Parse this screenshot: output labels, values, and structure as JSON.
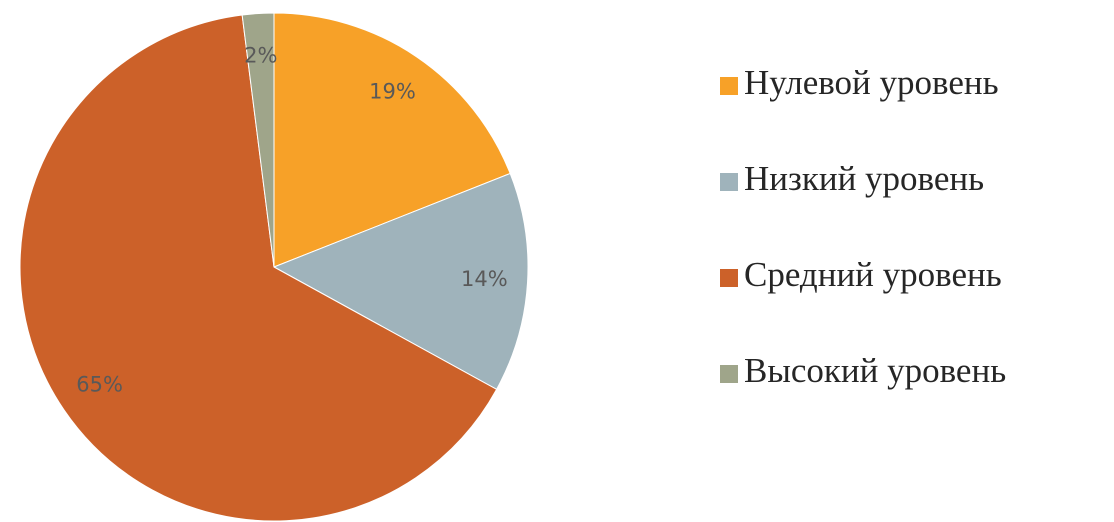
{
  "chart_data": {
    "type": "pie",
    "categories": [
      "Нулевой уровень",
      "Низкий уровень",
      "Средний уровень",
      "Высокий уровень"
    ],
    "values": [
      19,
      14,
      65,
      2
    ],
    "value_labels": [
      "19%",
      "14%",
      "65%",
      "2%"
    ],
    "colors": [
      "#f7a128",
      "#9fb3bb",
      "#cc6129",
      "#9fa58a"
    ],
    "legend": "right"
  }
}
